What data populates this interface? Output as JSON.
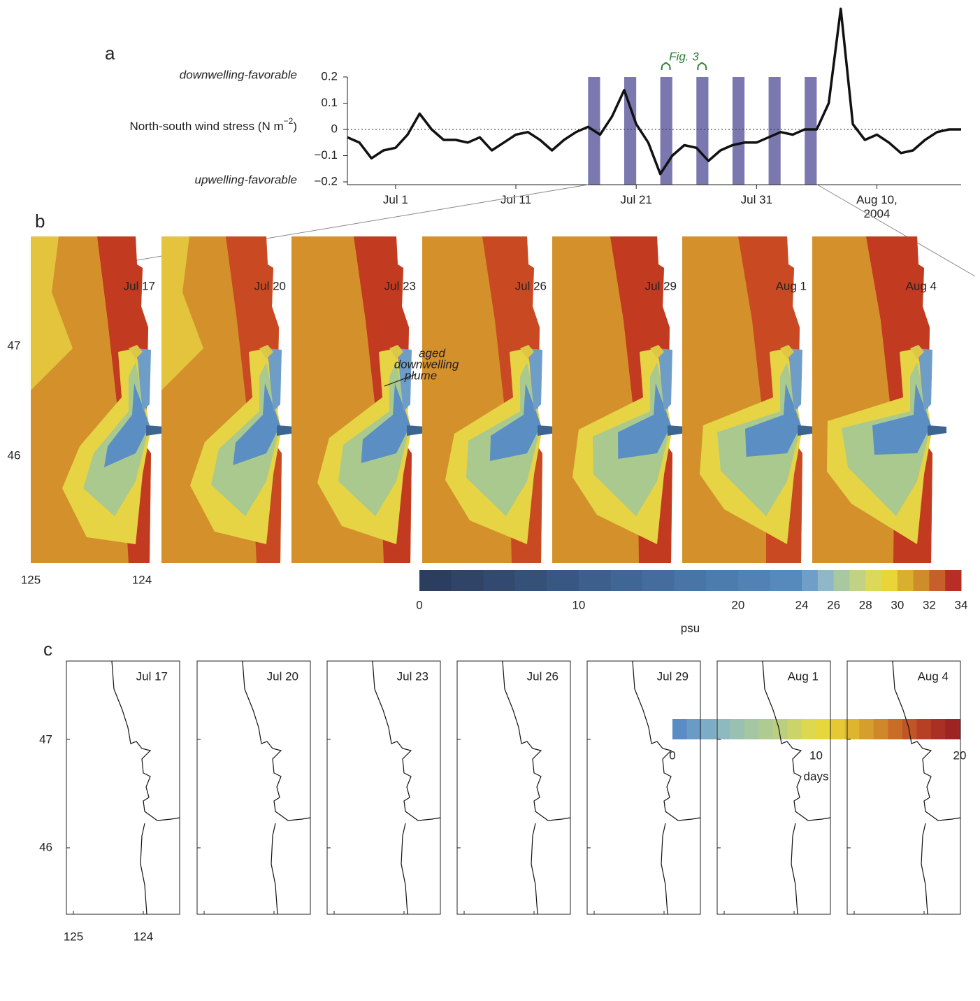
{
  "panel_labels": [
    "a",
    "b",
    "c"
  ],
  "chart_data": [
    {
      "type": "line",
      "y_label": [
        "North-south wind stress (N m",
        "−2",
        ")"
      ],
      "upper_note": "downwelling-favorable",
      "lower_note": "upwelling-favorable",
      "x": [
        "2004-06-27",
        "2004-06-28",
        "2004-06-29",
        "2004-06-30",
        "2004-07-01",
        "2004-07-02",
        "2004-07-03",
        "2004-07-04",
        "2004-07-05",
        "2004-07-06",
        "2004-07-07",
        "2004-07-08",
        "2004-07-09",
        "2004-07-10",
        "2004-07-11",
        "2004-07-12",
        "2004-07-13",
        "2004-07-14",
        "2004-07-15",
        "2004-07-16",
        "2004-07-17",
        "2004-07-18",
        "2004-07-19",
        "2004-07-20",
        "2004-07-21",
        "2004-07-22",
        "2004-07-23",
        "2004-07-24",
        "2004-07-25",
        "2004-07-26",
        "2004-07-27",
        "2004-07-28",
        "2004-07-29",
        "2004-07-30",
        "2004-07-31",
        "2004-08-01",
        "2004-08-02",
        "2004-08-03",
        "2004-08-04",
        "2004-08-05",
        "2004-08-06",
        "2004-08-07",
        "2004-08-08",
        "2004-08-09",
        "2004-08-10",
        "2004-08-11",
        "2004-08-12",
        "2004-08-13",
        "2004-08-14",
        "2004-08-15",
        "2004-08-16",
        "2004-08-17"
      ],
      "series": [
        {
          "color": "#111111",
          "values": [
            -0.03,
            -0.05,
            -0.11,
            -0.08,
            -0.07,
            -0.02,
            0.06,
            0.0,
            -0.04,
            -0.04,
            -0.05,
            -0.03,
            -0.08,
            -0.05,
            -0.02,
            -0.01,
            -0.04,
            -0.08,
            -0.04,
            -0.01,
            0.01,
            -0.02,
            0.05,
            0.15,
            0.02,
            -0.05,
            -0.17,
            -0.1,
            -0.06,
            -0.07,
            -0.12,
            -0.08,
            -0.06,
            -0.05,
            -0.05,
            -0.03,
            -0.01,
            -0.02,
            0.0,
            0.0,
            0.1,
            0.46,
            0.02,
            -0.04,
            -0.02,
            -0.05,
            -0.09,
            -0.08,
            -0.04,
            -0.01,
            0.0,
            0.0
          ]
        }
      ],
      "xlim": [
        "2004-06-27",
        "2004-08-17"
      ],
      "xticks": [
        {
          "value": "2004-07-01",
          "label": "Jul 1"
        },
        {
          "value": "2004-07-11",
          "label": "Jul 11"
        },
        {
          "value": "2004-07-21",
          "label": "Jul 21"
        },
        {
          "value": "2004-07-31",
          "label": "Jul 31"
        },
        {
          "value": "2004-08-10",
          "label": "Aug 10, 2004"
        }
      ],
      "ylim": [
        -0.2,
        0.2
      ],
      "yticks": [
        0.2,
        0.1,
        0,
        {
          "value": -0.1,
          "label": "−0.1"
        },
        {
          "value": -0.2,
          "label": "−0.2"
        }
      ],
      "zero_line": true,
      "highlight": {
        "dates": [
          "2004-07-17",
          "2004-07-20",
          "2004-07-23",
          "2004-07-26",
          "2004-07-29",
          "2004-08-01",
          "2004-08-04"
        ],
        "color": "#7b78b0"
      },
      "annotation": {
        "text": "Fig. 3",
        "color": "#2e7d32",
        "dates": [
          "2004-07-23",
          "2004-07-26"
        ]
      }
    },
    {
      "type": "colorbar",
      "label": "psu",
      "bins": [
        0,
        2,
        4,
        6,
        8,
        10,
        12,
        14,
        16,
        18,
        20,
        22,
        24,
        25,
        26,
        27,
        28,
        29,
        30,
        31,
        32,
        33,
        34
      ],
      "colors": [
        "#2c3e5f",
        "#2f4467",
        "#324a70",
        "#35517a",
        "#385883",
        "#3c5f8c",
        "#406695",
        "#446d9e",
        "#4874a6",
        "#4c7bae",
        "#5082b5",
        "#5689bc",
        "#6f9ec8",
        "#8fb7c8",
        "#a8c8a0",
        "#c2d284",
        "#dcd85a",
        "#e9d43a",
        "#d9b02e",
        "#cf8c2a",
        "#c6602a",
        "#b82e26"
      ],
      "xlim": [
        0,
        34
      ],
      "xticks": [
        0,
        10,
        20,
        24,
        26,
        28,
        30,
        32,
        34
      ]
    },
    {
      "type": "colorbar",
      "label": "days",
      "bins": [
        0,
        1,
        2,
        3,
        4,
        5,
        6,
        7,
        8,
        9,
        10,
        11,
        12,
        13,
        14,
        15,
        16,
        17,
        18,
        19,
        20
      ],
      "colors": [
        "#5b8bc4",
        "#6a9bc6",
        "#7cacc6",
        "#8dbac0",
        "#99c1b2",
        "#a4c6a2",
        "#afcb92",
        "#bccf80",
        "#cbd46a",
        "#dcd84f",
        "#e6d83c",
        "#e6c834",
        "#dfb52f",
        "#d69e2c",
        "#cf872a",
        "#c86d28",
        "#c05526",
        "#b63f25",
        "#aa2f25",
        "#9e2424"
      ],
      "xlim": [
        0,
        20
      ],
      "xticks": [
        0,
        10,
        20
      ]
    }
  ],
  "maps": {
    "dates": [
      "Jul 17",
      "Jul 20",
      "Jul 23",
      "Jul 26",
      "Jul 29",
      "Aug 1",
      "Aug 4"
    ],
    "lat_labels": [
      "47",
      "46"
    ],
    "lon_labels": [
      "125",
      "124"
    ],
    "annotation": [
      "aged",
      "downwelling",
      "plume"
    ]
  }
}
